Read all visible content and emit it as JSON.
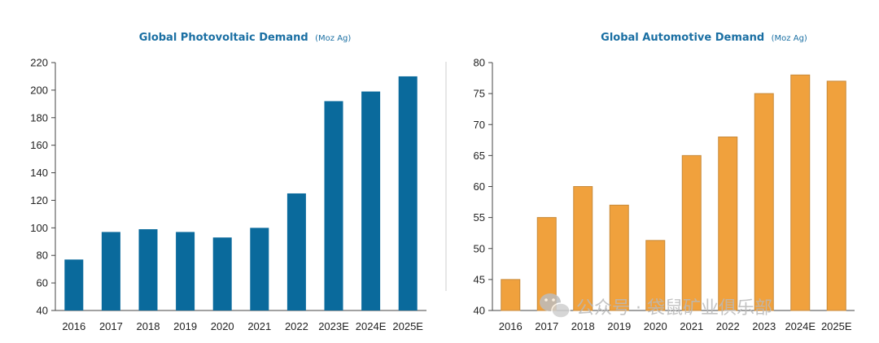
{
  "colors": {
    "title": "#1a6fa3",
    "left_bar": "#0a6a9c",
    "right_bar": "#f0a13d",
    "right_bar_stroke": "#c88a3a",
    "axis": "#444444",
    "divider": "#cfcfcf"
  },
  "watermark": {
    "icon": "wechat-icon",
    "text": "公众号 · 袋鼠矿业俱乐部"
  },
  "chart_data": [
    {
      "type": "bar",
      "title": "Global Photovoltaic Demand",
      "unit": "(Moz Ag)",
      "categories": [
        "2016",
        "2017",
        "2018",
        "2019",
        "2020",
        "2021",
        "2022",
        "2023E",
        "2024E",
        "2025E"
      ],
      "values": [
        77,
        97,
        99,
        97,
        93,
        100,
        125,
        192,
        199,
        210
      ],
      "ylim": [
        40,
        220
      ],
      "yticks": [
        40,
        60,
        80,
        100,
        120,
        140,
        160,
        180,
        200,
        220
      ],
      "grid": false
    },
    {
      "type": "bar",
      "title": "Global Automotive Demand",
      "unit": "(Moz Ag)",
      "categories": [
        "2016",
        "2017",
        "2018",
        "2019",
        "2020",
        "2021",
        "2022",
        "2023",
        "2024E",
        "2025E"
      ],
      "values": [
        45,
        55,
        60,
        57,
        51.3,
        65,
        68,
        75,
        78,
        77
      ],
      "ylim": [
        40,
        80
      ],
      "yticks": [
        40,
        45,
        50,
        55,
        60,
        65,
        70,
        75,
        80
      ],
      "grid": false
    }
  ]
}
